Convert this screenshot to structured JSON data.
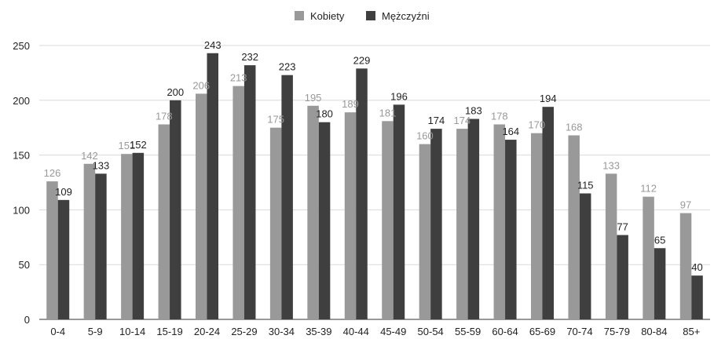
{
  "chart_data": {
    "type": "bar",
    "title": "",
    "xlabel": "",
    "ylabel": "",
    "ylim": [
      0,
      250
    ],
    "yticks": [
      0,
      50,
      100,
      150,
      200,
      250
    ],
    "grid": true,
    "legend_position": "top-center",
    "categories": [
      "0-4",
      "5-9",
      "10-14",
      "15-19",
      "20-24",
      "25-29",
      "30-34",
      "35-39",
      "40-44",
      "45-49",
      "50-54",
      "55-59",
      "60-64",
      "65-69",
      "70-74",
      "75-79",
      "80-84",
      "85+"
    ],
    "series": [
      {
        "name": "Kobiety",
        "color": "#999999",
        "label_color": "#999999",
        "values": [
          126,
          142,
          151,
          178,
          206,
          213,
          175,
          195,
          189,
          181,
          160,
          174,
          178,
          170,
          168,
          133,
          112,
          97
        ]
      },
      {
        "name": "Mężczyźni",
        "color": "#3f3f3f",
        "label_color": "#222222",
        "values": [
          109,
          133,
          152,
          200,
          243,
          232,
          223,
          180,
          229,
          196,
          174,
          183,
          164,
          194,
          115,
          77,
          65,
          40
        ]
      }
    ]
  }
}
